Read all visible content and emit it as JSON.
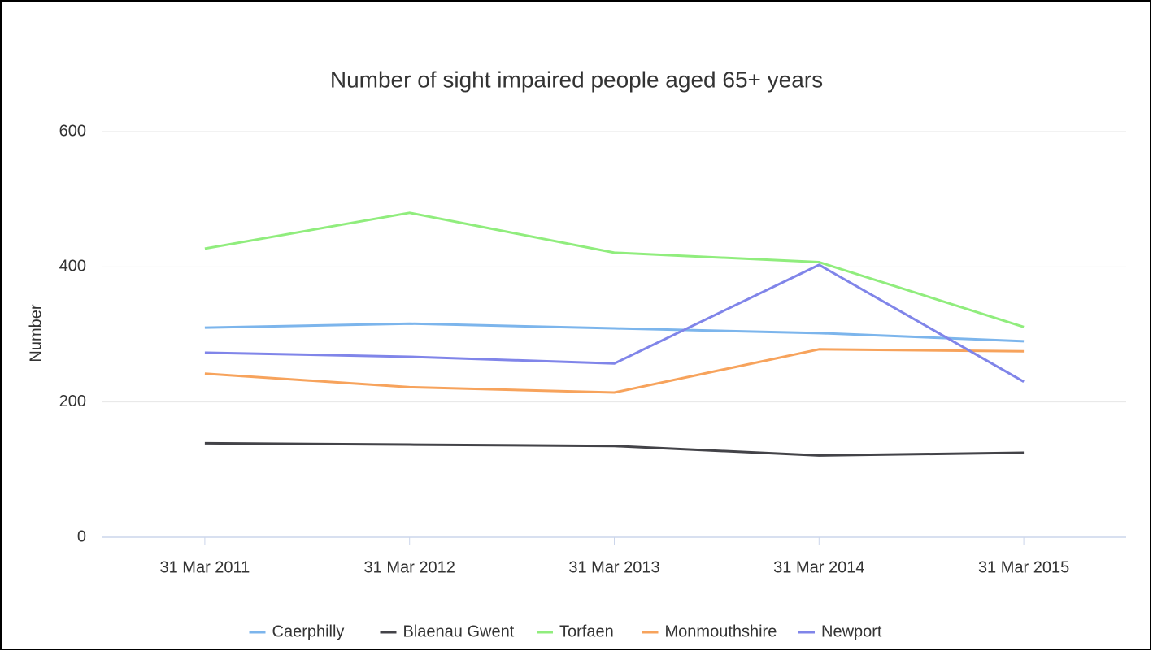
{
  "chart_data": {
    "type": "line",
    "title": "Number of sight impaired people aged 65+ years",
    "y_label": "Number",
    "categories": [
      "31 Mar 2011",
      "31 Mar 2012",
      "31 Mar 2013",
      "31 Mar 2014",
      "31 Mar 2015"
    ],
    "series": [
      {
        "name": "Caerphilly",
        "color": "#7cb5ec",
        "values": [
          310,
          316,
          309,
          302,
          290
        ]
      },
      {
        "name": "Blaenau Gwent",
        "color": "#434348",
        "values": [
          139,
          137,
          135,
          121,
          125
        ]
      },
      {
        "name": "Torfaen",
        "color": "#90ed7d",
        "values": [
          427,
          480,
          421,
          407,
          311
        ]
      },
      {
        "name": "Monmouthshire",
        "color": "#f7a35c",
        "values": [
          242,
          222,
          214,
          278,
          275
        ]
      },
      {
        "name": "Newport",
        "color": "#8085e9",
        "values": [
          273,
          267,
          257,
          403,
          230
        ]
      }
    ],
    "ylim": [
      0,
      600
    ],
    "yticks": [
      0,
      200,
      400,
      600
    ],
    "grid": true,
    "legend": "bottom"
  }
}
